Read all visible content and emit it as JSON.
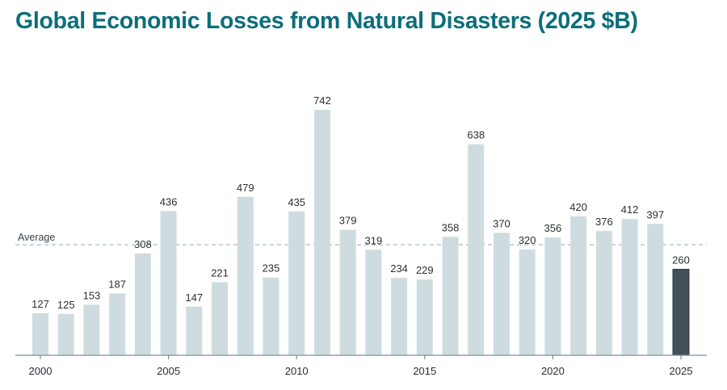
{
  "chart_data": {
    "type": "bar",
    "title": "Global Economic Losses from Natural Disasters (2025 $B)",
    "categories": [
      2000,
      2001,
      2002,
      2003,
      2004,
      2005,
      2006,
      2007,
      2008,
      2009,
      2010,
      2011,
      2012,
      2013,
      2014,
      2015,
      2016,
      2017,
      2018,
      2019,
      2020,
      2021,
      2022,
      2023,
      2024,
      2025
    ],
    "values": [
      127,
      125,
      153,
      187,
      308,
      436,
      147,
      221,
      479,
      235,
      435,
      742,
      379,
      319,
      234,
      229,
      358,
      638,
      370,
      320,
      356,
      420,
      376,
      412,
      397,
      260
    ],
    "x_ticks": [
      "2000",
      "2005",
      "2010",
      "2015",
      "2020",
      "2025"
    ],
    "highlight_category": 2025,
    "reference_line": {
      "label": "Average",
      "value_estimated": 334
    },
    "ylim": [
      0,
      742
    ],
    "grid": false,
    "colors": {
      "title": "#0b6e7a",
      "bar": "#cfdcdf",
      "highlight": "#434f5a",
      "axis": "#7d8e94",
      "average_line": "#a9bcbf"
    }
  }
}
